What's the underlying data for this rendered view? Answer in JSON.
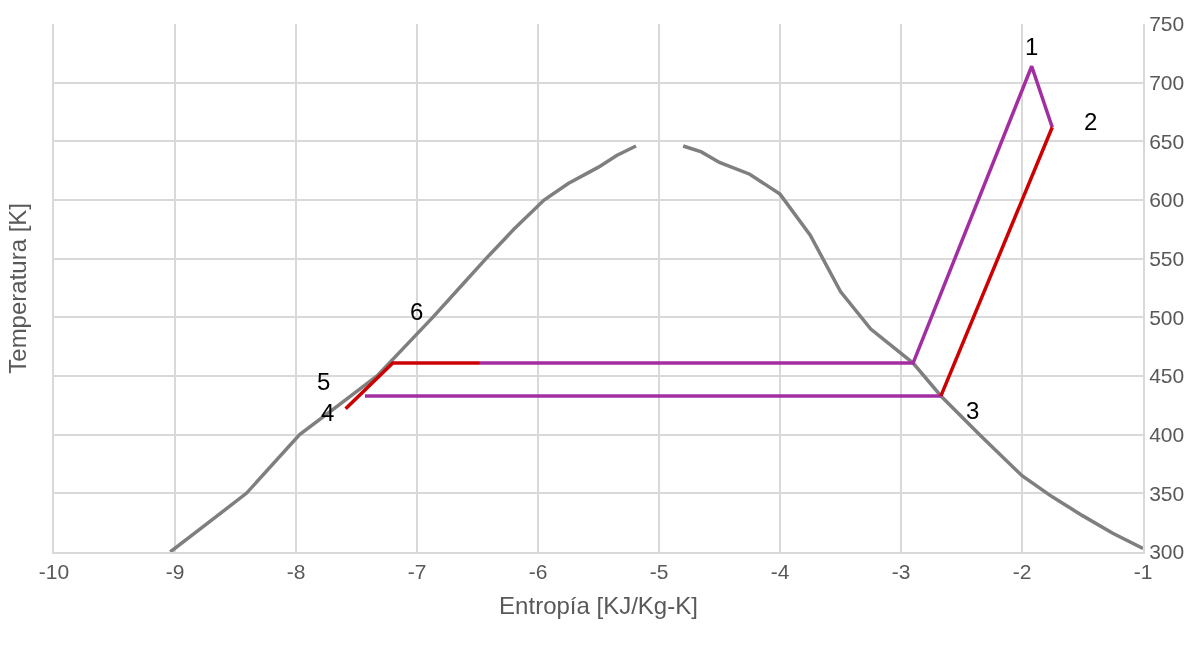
{
  "chart_data": {
    "type": "line",
    "xlabel": "Entropía [KJ/Kg-K]",
    "ylabel": "Temperatura [K]",
    "xlim": [
      -10,
      -1
    ],
    "xticks": [
      -10,
      -9,
      -8,
      -7,
      -6,
      -5,
      -4,
      -3,
      -2,
      -1
    ],
    "ylim": [
      300,
      750
    ],
    "yticks": [
      300,
      350,
      400,
      450,
      500,
      550,
      600,
      650,
      700,
      750
    ],
    "grid": true,
    "marker": "none",
    "line_style": "solid",
    "series": [
      {
        "color": "#7f7f7f",
        "x": [
          -9.04,
          -8.7,
          -8.41,
          -7.97,
          -7.65,
          -7.33,
          -7.1,
          -6.87,
          -6.65,
          -6.43,
          -6.2,
          -5.95,
          -5.75,
          -5.5,
          -5.35,
          -5.19,
          -5.0,
          -4.8,
          -4.65,
          -4.5,
          -4.25,
          -4.0,
          -3.75,
          -3.5,
          -3.25,
          -2.9,
          -2.67,
          -2.35,
          -2.0,
          -1.75,
          -1.5,
          -1.25,
          -1.0
        ],
        "values": [
          300,
          327,
          350,
          400,
          425,
          450,
          475,
          500,
          525,
          550,
          575,
          600,
          614,
          628,
          638,
          646,
          null,
          646,
          641,
          632,
          622,
          605,
          570,
          522,
          490,
          461,
          433,
          400,
          365,
          347,
          331,
          316,
          303
        ]
      },
      {
        "color": "#a22ea2",
        "x": [
          -7.43,
          -2.67
        ],
        "values": [
          433,
          433
        ]
      },
      {
        "color": "#a22ea2",
        "x": [
          -1.75,
          -1.92,
          -2.9,
          -6.48
        ],
        "values": [
          662,
          714,
          461,
          461
        ]
      },
      {
        "color": "#cc0000",
        "x": [
          -2.67,
          -1.75
        ],
        "values": [
          433,
          662
        ]
      },
      {
        "color": "#cc0000",
        "x": [
          -6.48,
          -7.2,
          -7.59
        ],
        "values": [
          461,
          461,
          422
        ]
      }
    ],
    "annotations": [
      {
        "text": "1",
        "x": -1.92,
        "y": 714
      },
      {
        "text": "2",
        "x": -1.75,
        "y": 662
      },
      {
        "text": "3",
        "x": -2.67,
        "y": 433
      },
      {
        "text": "4",
        "x": -7.59,
        "y": 422
      },
      {
        "text": "5",
        "x": -7.2,
        "y": 461
      },
      {
        "text": "6",
        "x": -6.87,
        "y": 500
      }
    ]
  }
}
